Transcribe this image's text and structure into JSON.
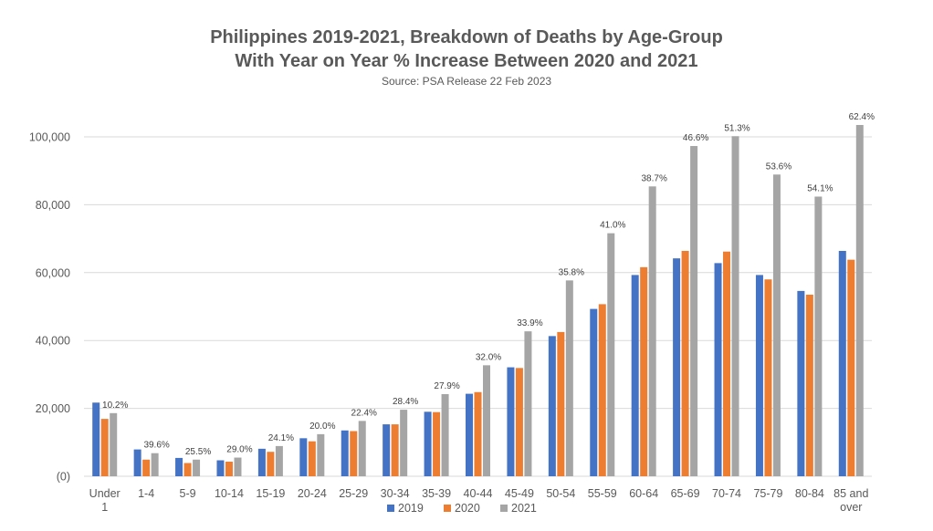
{
  "chart_data": {
    "type": "bar",
    "title_line1": "Philippines 2019-2021, Breakdown of Deaths by Age-Group",
    "title_line2": "With Year on Year % Increase Between 2020 and 2021",
    "subtitle": "Source: PSA Release 22 Feb 2023",
    "xlabel": "",
    "ylabel": "",
    "ylim": [
      0,
      100000
    ],
    "y_ticks": [
      0,
      20000,
      40000,
      60000,
      80000,
      100000
    ],
    "y_tick_labels": [
      "(0)",
      "20,000",
      "40,000",
      "60,000",
      "80,000",
      "100,000"
    ],
    "categories": [
      [
        "Under",
        "1"
      ],
      [
        "1-4"
      ],
      [
        "5-9"
      ],
      [
        "10-14"
      ],
      [
        "15-19"
      ],
      [
        "20-24"
      ],
      [
        "25-29"
      ],
      [
        "30-34"
      ],
      [
        "35-39"
      ],
      [
        "40-44"
      ],
      [
        "45-49"
      ],
      [
        "50-54"
      ],
      [
        "55-59"
      ],
      [
        "60-64"
      ],
      [
        "65-69"
      ],
      [
        "70-74"
      ],
      [
        "75-79"
      ],
      [
        "80-84"
      ],
      [
        "85 and",
        "over"
      ]
    ],
    "series": [
      {
        "name": "2019",
        "color": "#4472C4",
        "values": [
          21700,
          7900,
          5400,
          4700,
          8100,
          11200,
          13500,
          15300,
          19000,
          24300,
          32100,
          41300,
          49300,
          59300,
          64200,
          62800,
          59300,
          54600,
          66400
        ]
      },
      {
        "name": "2020",
        "color": "#ED7D31",
        "values": [
          16900,
          4900,
          3900,
          4300,
          7200,
          10300,
          13300,
          15300,
          18900,
          24800,
          31900,
          42500,
          50700,
          61600,
          66400,
          66200,
          58000,
          53500,
          63800
        ]
      },
      {
        "name": "2021",
        "color": "#A5A5A5",
        "values": [
          18600,
          6800,
          4900,
          5500,
          8900,
          12400,
          16300,
          19600,
          24200,
          32700,
          42700,
          57700,
          71600,
          85400,
          97300,
          100200,
          88900,
          82400,
          103500
        ]
      }
    ],
    "pct_labels": [
      "10.2%",
      "39.6%",
      "25.5%",
      "29.0%",
      "24.1%",
      "20.0%",
      "22.4%",
      "28.4%",
      "27.9%",
      "32.0%",
      "33.9%",
      "35.8%",
      "41.0%",
      "38.7%",
      "46.6%",
      "51.3%",
      "53.6%",
      "54.1%",
      "62.4%"
    ],
    "gridlines": true,
    "legend_position": "bottom",
    "gridline_color": "#D9D9D9",
    "text_color": "#595959"
  }
}
